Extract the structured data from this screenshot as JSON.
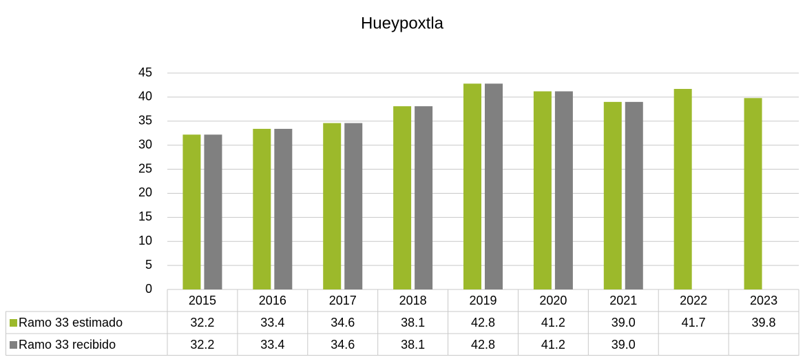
{
  "chart_data": {
    "type": "bar",
    "title": "Hueypoxtla",
    "categories": [
      "2015",
      "2016",
      "2017",
      "2018",
      "2019",
      "2020",
      "2021",
      "2022",
      "2023"
    ],
    "series": [
      {
        "name": "Ramo 33 estimado",
        "color": "#9cb92b",
        "values": [
          32.2,
          33.4,
          34.6,
          38.1,
          42.8,
          41.2,
          39.0,
          41.7,
          39.8
        ],
        "value_labels": [
          "32.2",
          "33.4",
          "34.6",
          "38.1",
          "42.8",
          "41.2",
          "39.0",
          "41.7",
          "39.8"
        ]
      },
      {
        "name": "Ramo 33 recibido",
        "color": "#808080",
        "values": [
          32.2,
          33.4,
          34.6,
          38.1,
          42.8,
          41.2,
          39.0,
          null,
          null
        ],
        "value_labels": [
          "32.2",
          "33.4",
          "34.6",
          "38.1",
          "42.8",
          "41.2",
          "39.0",
          null,
          null
        ]
      }
    ],
    "ylim": [
      0,
      45
    ],
    "yticks": [
      0,
      5,
      10,
      15,
      20,
      25,
      30,
      35,
      40,
      45
    ],
    "grid": true
  }
}
